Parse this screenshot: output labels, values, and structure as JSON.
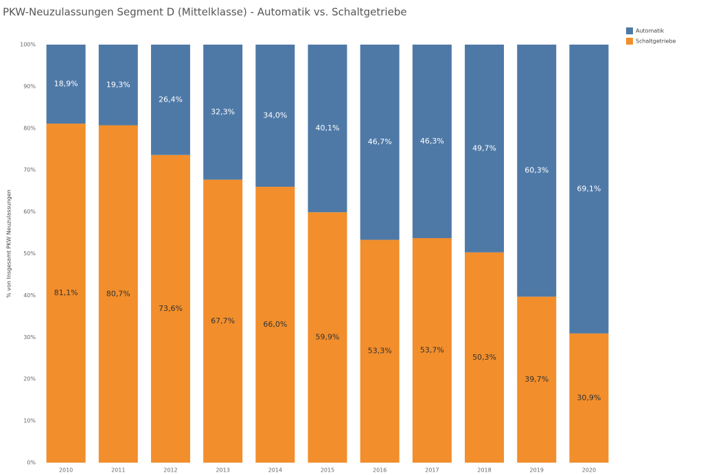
{
  "chart_data": {
    "type": "stacked_bar_100",
    "title": "PKW-Neuzulassungen Segment D (Mittelklasse) - Automatik vs. Schaltgetriebe",
    "y_label": "% von Insgesamt PKW Neuzulassungen",
    "categories": [
      "2010",
      "2011",
      "2012",
      "2013",
      "2014",
      "2015",
      "2016",
      "2017",
      "2018",
      "2019",
      "2020"
    ],
    "series": [
      {
        "name": "Schaltgetriebe",
        "color": "#f28e2b",
        "values": [
          81.1,
          80.7,
          73.6,
          67.7,
          66.0,
          59.9,
          53.3,
          53.7,
          50.3,
          39.7,
          30.9
        ],
        "value_labels": [
          "81,1%",
          "80,7%",
          "73,6%",
          "67,7%",
          "66,0%",
          "59,9%",
          "53,3%",
          "53,7%",
          "50,3%",
          "39,7%",
          "30,9%"
        ]
      },
      {
        "name": "Automatik",
        "color": "#4e79a7",
        "values": [
          18.9,
          19.3,
          26.4,
          32.3,
          34.0,
          40.1,
          46.7,
          46.3,
          49.7,
          60.3,
          69.1
        ],
        "value_labels": [
          "18,9%",
          "19,3%",
          "26,4%",
          "32,3%",
          "34,0%",
          "40,1%",
          "46,7%",
          "46,3%",
          "49,7%",
          "60,3%",
          "69,1%"
        ]
      }
    ],
    "ylim": [
      0,
      100
    ],
    "yticks": [
      {
        "value": 0,
        "label": "0%"
      },
      {
        "value": 10,
        "label": "10%"
      },
      {
        "value": 20,
        "label": "20%"
      },
      {
        "value": 30,
        "label": "30%"
      },
      {
        "value": 40,
        "label": "40%"
      },
      {
        "value": 50,
        "label": "50%"
      },
      {
        "value": 60,
        "label": "60%"
      },
      {
        "value": 70,
        "label": "70%"
      },
      {
        "value": 80,
        "label": "80%"
      },
      {
        "value": 90,
        "label": "90%"
      },
      {
        "value": 100,
        "label": "100%"
      }
    ],
    "grid": false,
    "legend": "top-right"
  }
}
